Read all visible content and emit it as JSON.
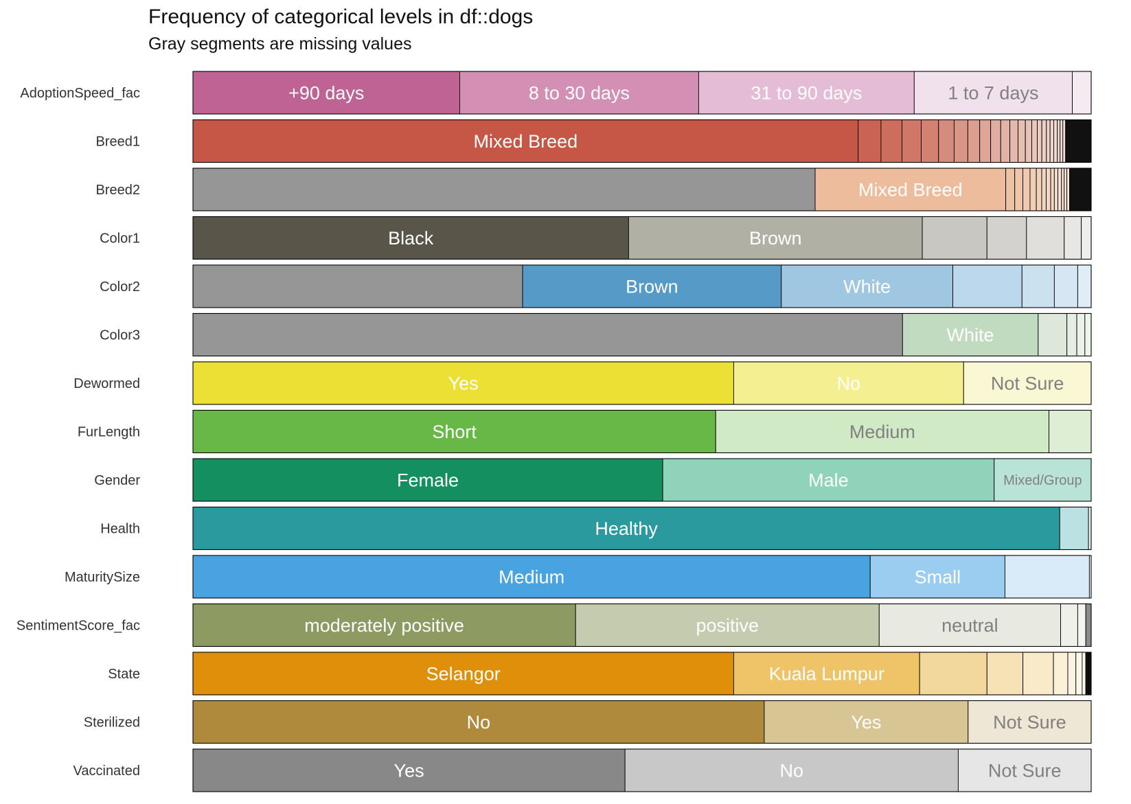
{
  "chart_data": {
    "type": "bar",
    "orientation": "horizontal-stacked-proportion",
    "title": "Frequency of categorical levels in df::dogs",
    "subtitle": "Gray segments are missing values",
    "xlim": [
      0,
      1
    ],
    "grid": false,
    "legend": "none",
    "missing_color": "#969696",
    "rows": [
      {
        "name": "AdoptionSpeed_fac",
        "segments": [
          {
            "label": "+90 days",
            "value": 0.297,
            "color": "#BF6294",
            "text_color": "#FFFFFF"
          },
          {
            "label": "8 to 30 days",
            "value": 0.266,
            "color": "#D38FB4",
            "text_color": "#FFFFFF"
          },
          {
            "label": "31 to 90 days",
            "value": 0.24,
            "color": "#E5BCD5",
            "text_color": "#FFFFFF"
          },
          {
            "label": "1 to 7 days",
            "value": 0.176,
            "color": "#F1E1EC",
            "text_color": "#808080"
          },
          {
            "label": "",
            "value": 0.021,
            "color": "#F6EAF2",
            "text_color": "#808080"
          }
        ]
      },
      {
        "name": "Breed1",
        "segments": [
          {
            "label": "Mixed Breed",
            "value": 0.728,
            "color": "#C65746",
            "text_color": "#FFFFFF"
          },
          {
            "label": "",
            "value": 0.025,
            "color": "#CA6354"
          },
          {
            "label": "",
            "value": 0.023,
            "color": "#CD6D5E"
          },
          {
            "label": "",
            "value": 0.021,
            "color": "#D07868"
          },
          {
            "label": "",
            "value": 0.019,
            "color": "#D38272"
          },
          {
            "label": "",
            "value": 0.017,
            "color": "#D68C7C"
          },
          {
            "label": "",
            "value": 0.015,
            "color": "#D99586"
          },
          {
            "label": "",
            "value": 0.013,
            "color": "#DC9E8F"
          },
          {
            "label": "",
            "value": 0.012,
            "color": "#DEA697"
          },
          {
            "label": "",
            "value": 0.011,
            "color": "#E0AD9F"
          },
          {
            "label": "",
            "value": 0.01,
            "color": "#E2B3A6"
          },
          {
            "label": "",
            "value": 0.009,
            "color": "#E4B9AC"
          },
          {
            "label": "",
            "value": 0.008,
            "color": "#E6BEB2"
          },
          {
            "label": "",
            "value": 0.007,
            "color": "#E8C2B7"
          },
          {
            "label": "",
            "value": 0.006,
            "color": "#EAC7BC"
          },
          {
            "label": "",
            "value": 0.005,
            "color": "#ECCBC1"
          },
          {
            "label": "",
            "value": 0.005,
            "color": "#EDCFC5"
          },
          {
            "label": "",
            "value": 0.004,
            "color": "#EED2C9"
          },
          {
            "label": "",
            "value": 0.004,
            "color": "#EFD5CD"
          },
          {
            "label": "",
            "value": 0.004,
            "color": "#F0D8D0"
          },
          {
            "label": "",
            "value": 0.003,
            "color": "#F1DBD3"
          },
          {
            "label": "",
            "value": 0.003,
            "color": "#F2DDD6"
          },
          {
            "label": "",
            "value": 0.003,
            "color": "#F3E0D9"
          },
          {
            "label": "",
            "value": 0.028,
            "color": "#111111"
          }
        ]
      },
      {
        "name": "Breed2",
        "segments": [
          {
            "label": "",
            "value": 0.692,
            "color": "#969696"
          },
          {
            "label": "Mixed Breed",
            "value": 0.212,
            "color": "#ECBC9C",
            "text_color": "#FFFFFF"
          },
          {
            "label": "",
            "value": 0.01,
            "color": "#EEC2A4"
          },
          {
            "label": "",
            "value": 0.009,
            "color": "#EFC6AA"
          },
          {
            "label": "",
            "value": 0.008,
            "color": "#F0CAB0"
          },
          {
            "label": "",
            "value": 0.007,
            "color": "#F1CEB6"
          },
          {
            "label": "",
            "value": 0.006,
            "color": "#F2D1BB"
          },
          {
            "label": "",
            "value": 0.005,
            "color": "#F3D4BF"
          },
          {
            "label": "",
            "value": 0.005,
            "color": "#F4D7C3"
          },
          {
            "label": "",
            "value": 0.004,
            "color": "#F5DAC7"
          },
          {
            "label": "",
            "value": 0.004,
            "color": "#F6DDCB"
          },
          {
            "label": "",
            "value": 0.004,
            "color": "#F7E0CF"
          },
          {
            "label": "",
            "value": 0.003,
            "color": "#F8E3D3"
          },
          {
            "label": "",
            "value": 0.003,
            "color": "#F9E5D6"
          },
          {
            "label": "",
            "value": 0.003,
            "color": "#FAE8DA"
          },
          {
            "label": "",
            "value": 0.024,
            "color": "#111111"
          }
        ]
      },
      {
        "name": "Color1",
        "segments": [
          {
            "label": "Black",
            "value": 0.485,
            "color": "#595548",
            "text_color": "#FFFFFF"
          },
          {
            "label": "Brown",
            "value": 0.327,
            "color": "#B0B0A5",
            "text_color": "#FFFFFF"
          },
          {
            "label": "",
            "value": 0.072,
            "color": "#C8C7C1"
          },
          {
            "label": "",
            "value": 0.044,
            "color": "#D3D2CE"
          },
          {
            "label": "",
            "value": 0.042,
            "color": "#E0DFDC"
          },
          {
            "label": "",
            "value": 0.019,
            "color": "#E8E7E5"
          },
          {
            "label": "",
            "value": 0.011,
            "color": "#EEEEEC"
          }
        ]
      },
      {
        "name": "Color2",
        "segments": [
          {
            "label": "",
            "value": 0.367,
            "color": "#969696"
          },
          {
            "label": "Brown",
            "value": 0.288,
            "color": "#569BC8",
            "text_color": "#FFFFFF"
          },
          {
            "label": "White",
            "value": 0.191,
            "color": "#A0C7E2",
            "text_color": "#FFFFFF"
          },
          {
            "label": "",
            "value": 0.077,
            "color": "#BCD8EC"
          },
          {
            "label": "",
            "value": 0.036,
            "color": "#CCE1F0"
          },
          {
            "label": "",
            "value": 0.026,
            "color": "#D6E7F3"
          },
          {
            "label": "",
            "value": 0.015,
            "color": "#E0ECF6"
          }
        ]
      },
      {
        "name": "Color3",
        "segments": [
          {
            "label": "",
            "value": 0.79,
            "color": "#969696"
          },
          {
            "label": "White",
            "value": 0.151,
            "color": "#C1DBC1",
            "text_color": "#FFFFFF"
          },
          {
            "label": "",
            "value": 0.032,
            "color": "#DDE8DB"
          },
          {
            "label": "",
            "value": 0.011,
            "color": "#E6EEE4"
          },
          {
            "label": "",
            "value": 0.009,
            "color": "#ECF2EA"
          },
          {
            "label": "",
            "value": 0.007,
            "color": "#F1F5EF"
          }
        ]
      },
      {
        "name": "Dewormed",
        "segments": [
          {
            "label": "Yes",
            "value": 0.602,
            "color": "#EDE035",
            "text_color": "#FFFFFF"
          },
          {
            "label": "No",
            "value": 0.256,
            "color": "#F4EF91",
            "text_color": "#FFFFFF"
          },
          {
            "label": "Not Sure",
            "value": 0.142,
            "color": "#FAF8D4",
            "text_color": "#808080"
          }
        ]
      },
      {
        "name": "FurLength",
        "segments": [
          {
            "label": "Short",
            "value": 0.582,
            "color": "#68B848",
            "text_color": "#FFFFFF"
          },
          {
            "label": "Medium",
            "value": 0.371,
            "color": "#D0EAC6",
            "text_color": "#808080"
          },
          {
            "label": "",
            "value": 0.047,
            "color": "#DDEED5"
          }
        ]
      },
      {
        "name": "Gender",
        "segments": [
          {
            "label": "Female",
            "value": 0.523,
            "color": "#148F5F",
            "text_color": "#FFFFFF"
          },
          {
            "label": "Male",
            "value": 0.369,
            "color": "#8FD3BA",
            "text_color": "#FFFFFF"
          },
          {
            "label": "Mixed/Group",
            "value": 0.108,
            "color": "#B9E3D6",
            "text_color": "#808080"
          }
        ]
      },
      {
        "name": "Health",
        "segments": [
          {
            "label": "Healthy",
            "value": 0.965,
            "color": "#2A9A9F",
            "text_color": "#FFFFFF"
          },
          {
            "label": "",
            "value": 0.032,
            "color": "#BCE1E3"
          },
          {
            "label": "",
            "value": 0.003,
            "color": "#E3F1F2"
          }
        ]
      },
      {
        "name": "MaturitySize",
        "segments": [
          {
            "label": "Medium",
            "value": 0.754,
            "color": "#48A3E0",
            "text_color": "#FFFFFF"
          },
          {
            "label": "Small",
            "value": 0.15,
            "color": "#9ACDF0",
            "text_color": "#FFFFFF"
          },
          {
            "label": "",
            "value": 0.094,
            "color": "#D9EBF8"
          },
          {
            "label": "",
            "value": 0.002,
            "color": "#EDF5FB"
          }
        ]
      },
      {
        "name": "SentimentScore_fac",
        "segments": [
          {
            "label": "moderately positive",
            "value": 0.426,
            "color": "#8D9A62",
            "text_color": "#FFFFFF"
          },
          {
            "label": "positive",
            "value": 0.338,
            "color": "#C5CBAF",
            "text_color": "#FFFFFF"
          },
          {
            "label": "neutral",
            "value": 0.202,
            "color": "#E8EAE1",
            "text_color": "#808080"
          },
          {
            "label": "",
            "value": 0.019,
            "color": "#EFF0EA"
          },
          {
            "label": "",
            "value": 0.009,
            "color": "#F3F4EF"
          },
          {
            "label": "",
            "value": 0.006,
            "color": "#8A8A8A"
          }
        ]
      },
      {
        "name": "State",
        "segments": [
          {
            "label": "Selangor",
            "value": 0.602,
            "color": "#E08F0B",
            "text_color": "#FFFFFF"
          },
          {
            "label": "Kuala Lumpur",
            "value": 0.207,
            "color": "#EFC368",
            "text_color": "#FFFFFF"
          },
          {
            "label": "",
            "value": 0.075,
            "color": "#F3D89E"
          },
          {
            "label": "",
            "value": 0.04,
            "color": "#F6E2B4"
          },
          {
            "label": "",
            "value": 0.034,
            "color": "#F9EBCA"
          },
          {
            "label": "",
            "value": 0.016,
            "color": "#FBF1D8"
          },
          {
            "label": "",
            "value": 0.009,
            "color": "#FCF4E0"
          },
          {
            "label": "",
            "value": 0.007,
            "color": "#FDF7E8"
          },
          {
            "label": "",
            "value": 0.004,
            "color": "#FEF9EE"
          },
          {
            "label": "",
            "value": 0.003,
            "color": "#111111"
          },
          {
            "label": "",
            "value": 0.003,
            "color": "#111111"
          }
        ]
      },
      {
        "name": "Sterilized",
        "segments": [
          {
            "label": "No",
            "value": 0.636,
            "color": "#AF8A3D",
            "text_color": "#FFFFFF"
          },
          {
            "label": "Yes",
            "value": 0.227,
            "color": "#D8C594",
            "text_color": "#FFFFFF"
          },
          {
            "label": "Not Sure",
            "value": 0.137,
            "color": "#EFE7D6",
            "text_color": "#808080"
          }
        ]
      },
      {
        "name": "Vaccinated",
        "segments": [
          {
            "label": "Yes",
            "value": 0.481,
            "color": "#888888",
            "text_color": "#FFFFFF"
          },
          {
            "label": "No",
            "value": 0.371,
            "color": "#C8C8C8",
            "text_color": "#FFFFFF"
          },
          {
            "label": "Not Sure",
            "value": 0.148,
            "color": "#E6E6E6",
            "text_color": "#808080"
          }
        ]
      }
    ]
  }
}
